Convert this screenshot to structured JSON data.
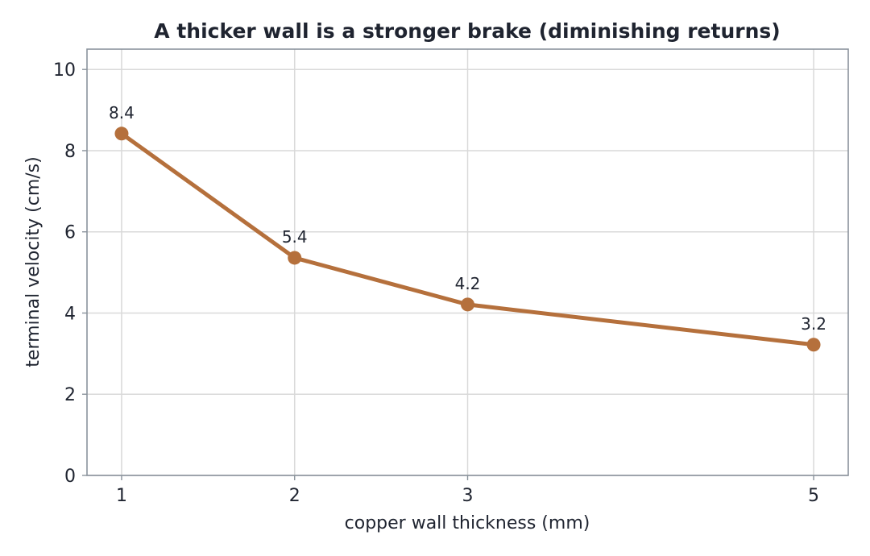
{
  "chart_data": {
    "type": "line",
    "title": "A thicker wall is a stronger brake (diminishing returns)",
    "xlabel": "copper wall thickness  (mm)",
    "ylabel": "terminal velocity  (cm/s)",
    "x": [
      1,
      2,
      3,
      5
    ],
    "x_ticks": [
      1,
      2,
      3,
      5
    ],
    "xlim": [
      0.8,
      5.2
    ],
    "ylim": [
      0,
      10.5
    ],
    "y_ticks": [
      0,
      2,
      4,
      6,
      8,
      10
    ],
    "grid": true,
    "series": [
      {
        "values": [
          8.42,
          5.36,
          4.21,
          3.22
        ],
        "data_labels": [
          "8.4",
          "5.4",
          "4.2",
          "3.2"
        ],
        "color": "#b5703c"
      }
    ],
    "colors": {
      "line": "#b5703c",
      "grid": "#d9d9d9",
      "frame": "#8a939c",
      "text": "#1f2430"
    }
  }
}
